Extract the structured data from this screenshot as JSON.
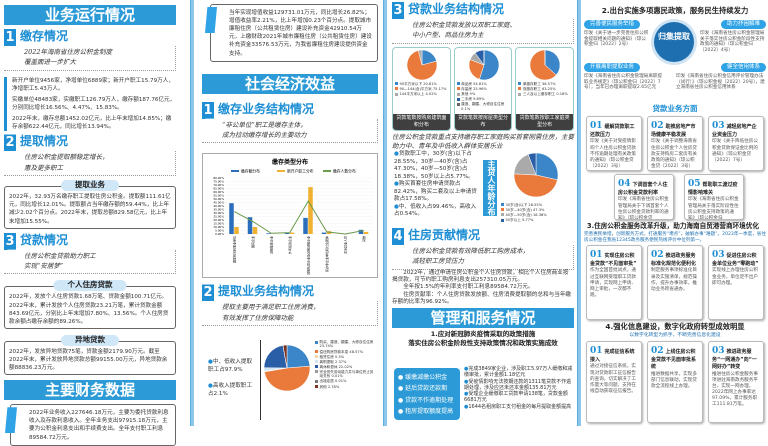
{
  "col1": {
    "band1": "业务运行情况",
    "s1": {
      "num": "1",
      "title": "缴存情况",
      "sub": [
        "2022年海南省住房公积金制度",
        "覆盖面进一步扩大"
      ]
    },
    "s1_text": [
      "新开户单位9456家，净增单位6889家；新开户职工15.79万人，净增职工5.43万人。",
      "实缴单位48483家，实缴职工126.79万人，缴存额187.76亿元，分别同比增长16.56%、4.47%、15.83%。",
      "2022年末，缴存总额1452.02亿元，比上年末增加14.85%；缴存余额622.44亿元，同比增长13.94%。"
    ],
    "s2": {
      "num": "2",
      "title": "提取情况",
      "sub": [
        "住房公积金提取额稳定增长，",
        "惠及更多职工"
      ]
    },
    "withdraw": {
      "tag": "提取业务",
      "text": "2022年，32.93万名缴存职工提取住房公积金。提取额111.61亿元，同比增长12.01%。提取额占当年缴存额的59.44%，比上年减少2.02个百分点。2022年末，提取总额829.58亿元，比上年末增加15.55%。"
    },
    "s3": {
      "num": "3",
      "title": "贷款情况",
      "sub": [
        "住房公积金贷款助力职工",
        "实现“安居梦”"
      ]
    },
    "personal": {
      "tag": "个人住房贷款",
      "text": "2022年，发放个人住房贷款1.68万笔、贷款金额100.71亿元。2022年末，累计发放个人住房贷款23.21万笔，累计贷款金额843.69亿元，分别比上年末增加7.80%、13.56%。个人住房贷款余额占缴存余额的89.26%。"
    },
    "offsite": {
      "tag": "异地贷款",
      "text": "2022年，发放异地贷款75笔，贷款金额2179.90万元。截至2022年末，累计发放异地贷款总额99155.00万元，异地贷款余额88836.23万元。"
    },
    "band2": "主要财务数据",
    "finance": "2022年业务收入227646.18万元，主要为委托贷款利息收入及存款利息收入。全年业务支出97915.18万元，主要为公积金利息支出和手续费支出。全年支付职工利息89584.72万元。"
  },
  "col2": {
    "finance2": "当年实现增值收益129731.01万元，同比增长26.82%；增值收益率2.21%，比上年增加0.23个百分点。提取城市廉租住房（公共租赁住房）建设补充资金42910.54万元，上缴财政2021年城市廉租住房（公共租赁住房）建设补充资金33576.53万元，为我省廉租住房建设提供资金支持。",
    "band": "社会经济效益",
    "s1": {
      "num": "1",
      "title": "缴存业务结构情况",
      "sub": [
        "“非公单位”职工是缴存主体，",
        "成为拉动缴存增长的主要动力"
      ]
    },
    "s2": {
      "num": "2",
      "title": "提取业务结构情况",
      "sub": [
        "提取主要用于满足职工住房消费，",
        "有效发挥了住房保障功能"
      ]
    },
    "bullets": [
      "中、低收入提取职工占97.9%",
      "高收入提取职工占2.1%"
    ]
  },
  "col3": {
    "s3": {
      "num": "3",
      "title": "贷款业务结构情况",
      "sub": [
        "住房公积金贷款发放以双职工家庭、",
        "中小户型、商品住房为主"
      ]
    },
    "captions": [
      "贷款笔数按购房建筑面积分布",
      "贷款笔数按房屋类型分布",
      "贷款笔数按职工家庭类型分布"
    ],
    "focus": "住房公积金贷款重点支持缴存职工家庭购买首套刚需住房，主要助力中、青年及中低收入群体安居乐业",
    "bullets": [
      "贷款职工中，30岁(含)以下占28.55%，30岁—40岁(含)占47.30%，40岁—50岁(含)占18.38%，50岁以上占5.77%。",
      "购买首套住房申请贷款占82.42%，购买二套及以上申请贷款占17.58%。",
      "中、低收入占99.46%，高收入占0.54%。"
    ],
    "age_label": "主贷人年龄分布",
    "s4": {
      "num": "4",
      "title": "住房贡献情况",
      "sub": [
        "住房公积金贷款有效降低职工购房成本，",
        "减轻职工房贷压力"
      ]
    },
    "contrib": [
      "2022年，通过申请住房公积金个人住房贷款，相比个人住房商业按揭贷款，可节约职工购房利息支出257310.05万元。",
      "全年按1.5%的年利率支付职工利息89584.72万元。",
      "住房贡献率：个人住房贷款发放额、住房消费提取额的总和与当年缴存额的比率为96.92%。"
    ],
    "band": "管理和服务情况",
    "h1": [
      "1.应对新冠肺炎疫情采取的政策措施",
      "落实住房公积金阶段性支持政策情况和政策实施成效"
    ],
    "policies": [
      "缓缴减缴公积金",
      "延后贷款还款期",
      "贷款不作逾期处理",
      "租房提取额度提高"
    ],
    "results": [
      "完成3849家企业，涉及职工5.97万人缓缴和减缴审批，累计金额1.18亿元",
      "受疫情影响无法按期还款的1311笔贷款不作逾期处理，涉及应还未还本金额135.81万元",
      "受理企业缓缴职工贷款申请138笔，贷款金额6681万元",
      "1644名租房职工支付租金的每月提取金额提高"
    ]
  },
  "col4": {
    "h2": "2.出台实施多项惠民政策，服务民生持续发力",
    "center": "归集提取",
    "pills": [
      "完善便民服务举措",
      "助力抒困解难",
      "开展离职提取业务",
      "健全信用体系"
    ],
    "pill_texts": [
      "印发《关于进一步完善住房公积金提取相关问题的通知》（琼公积金归〔2022〕2号）",
      "印发《海南省住房公积金管理局关于落实住房公积金阶段性支持政策的通知》（琼公积金归〔2022〕4号）",
      "印发《海南省住房公积金管理局离职提取业务规定》（琼公积金归〔2022〕7号），当年已办理离职提取2.65亿元",
      "印发《海南省住房公积金信用评价管理办法（试行）》（琼公积金规〔2022〕20号），建立海南省住房公积金信用体系"
    ],
    "loan_head": "贷款业务方面",
    "loan_cards": [
      {
        "n": "01",
        "t": "缓解贷款职工还款压力",
        "d": "印发《关于对受疫情影响个人住房公积金贷款不作逾期处理有关政策的通知》（琼公积金贷〔2022〕3号）"
      },
      {
        "n": "02",
        "t": "助推房地产市场健康平稳发展",
        "d": "印发《关于调整海南省住房公积金个人住房贷款支持购房二套房有关政策的通知》（琼公积金贷〔2022〕3号）"
      },
      {
        "n": "03",
        "t": "减轻房地产企业资金压力",
        "d": "印发《关于降低住房公积金贷款保证金比例的通知》（琼公积金贷〔2022〕7号）"
      },
      {
        "n": "04",
        "t": "下调首套个人住房公积金贷款利率",
        "d": "印发《海南省住房公积金管理局关于下调首套个人住房公积金贷款利率的通知》（琼公积金贷〔2022〕12号）"
      },
      {
        "n": "05",
        "t": "帮助职工渡过疫情影响难关",
        "d": "印发《海南省住房公积金管理局关于落实阶段性住房公积金支持政策的通知》（琼公积金归〔2022〕38号）"
      }
    ],
    "h3": "3.住房公积金服务改革升级，助力海南自贸港营商环境优化",
    "h3_text": "完善惠民举措，创新服务方式，打通服务“堵点”，破解办事“难题”。2023年一季度，省住房公积金在我省12345政务服务便民热线评价中位列第一。",
    "svc_cards": [
      {
        "n": "01",
        "t": "实现住房公积金贷款“不见面审批”",
        "d": "作为全国首批试点，通过互联网受理职工贷款申请，实现网上申请、网上审批，一次都不跑。"
      },
      {
        "n": "02",
        "t": "推进政务服务标准化规范化便利化",
        "d": "制定服务事项标准化目录及实施清单，规范操作，提升办事效率，推动业务跨省通办。"
      },
      {
        "n": "03",
        "t": "促进住房公积金单位业务“零跑动”",
        "d": "实现线上办理住房公积金业务，单位足不出户即可办理。"
      }
    ],
    "h4": "4.强化信息建设，数字化政府转型成效明显",
    "h4_sub": "以数字化转型为抓手，不断完善信息化建设",
    "info_cards": [
      {
        "n": "01",
        "t": "完成征信系统接入",
        "d": "通过对接征信系统，实现对贷款职工征信报告的查询，切实解决了工作量大等问题，支持在线自动获取征信报告。"
      },
      {
        "n": "02",
        "t": "上线住房公积金贷款不见面审批系统",
        "d": "推进数据共享，实现多部门信息联动，实现贷款全流程线上办理。"
      },
      {
        "n": "03",
        "t": "推进政务服务“一网通办”向“一网好办”转变",
        "d": "推进住房公积金服务事项进驻海南政务服务平台，实现一网办理，2022年网上办事率达97.09%，累计服务职工111.81万笔。"
      }
    ]
  },
  "chart_data": [
    {
      "type": "bar",
      "title": "缴存类型分布",
      "legend": [
        "缴存额分布",
        "新开户职工分布",
        "缴存人数分布"
      ],
      "categories": [
        "国家机关和事业单位",
        "国有企业",
        "城镇集体企业",
        "外商投资企业",
        "城镇私营企业及其他城镇企业",
        "民办非企业单位和社会团体",
        "灵活就业人员",
        "其他"
      ],
      "series": [
        {
          "name": "缴存额分布",
          "kind": "bar",
          "values": [
            44,
            24,
            1,
            2,
            23,
            2,
            0,
            6
          ]
        },
        {
          "name": "新开户职工分布",
          "kind": "bar",
          "values": [
            10,
            10,
            0,
            2,
            67,
            4,
            0,
            3
          ]
        },
        {
          "name": "缴存人数分布",
          "kind": "line",
          "values": [
            32,
            18,
            1,
            2,
            47,
            3,
            0,
            5
          ]
        }
      ],
      "yticks": [
        "0.00%",
        "5.00%",
        "10.00%",
        "15.00%",
        "20.00%",
        "25.00%",
        "30.00%",
        "35.00%",
        "40.00%",
        "45.00%",
        "50.00%",
        "55.00%",
        "60.00%",
        "65.00%",
        "70.00%",
        "75.00%",
        "80.00%"
      ],
      "ylim": [
        0,
        80
      ]
    },
    {
      "type": "pie",
      "name": "withdraw",
      "slices": [
        {
          "label": "购买、建造、翻建、大修自住住房",
          "value": 23.74,
          "color": "#3a86c8"
        },
        {
          "label": "偿还购房贷款本息",
          "value": 48.57,
          "color": "#e97a3b"
        },
        {
          "label": "租赁住房",
          "value": 0.5,
          "color": "#f3d9a8"
        },
        {
          "label": "离职提取",
          "value": 2.37,
          "color": "#cfe3f3"
        },
        {
          "label": "离休和退休",
          "value": 22.02,
          "color": "#2a5fa8"
        },
        {
          "label": "完全丧失劳动能力并与单位终止劳动关系",
          "value": 0.01,
          "color": "#999"
        },
        {
          "label": "出境定居",
          "value": 0.01,
          "color": "#777"
        },
        {
          "label": "其他",
          "value": 2.78,
          "color": "#7a3322"
        }
      ]
    },
    {
      "type": "pie",
      "name": "area",
      "slices": [
        {
          "label": "90平方米以下",
          "value": 20.81,
          "color": "#3a86c8"
        },
        {
          "label": "90—144(含)平方米",
          "value": 75.17,
          "color": "#e97a3b"
        },
        {
          "label": "144平方米以上",
          "value": 4.02,
          "color": "#aaa"
        }
      ]
    },
    {
      "type": "pie",
      "name": "house",
      "slices": [
        {
          "label": "商品房",
          "value": 54.81,
          "color": "#3a86c8"
        },
        {
          "label": "存量房",
          "value": 25.96,
          "color": "#e97a3b"
        },
        {
          "label": "其他",
          "value": 9.0,
          "color": "#aaa"
        },
        {
          "label": "二手房",
          "value": 9.89,
          "color": "#2a5fa8"
        },
        {
          "label": "建造、翻建、大修自住住房",
          "value": 0.1,
          "color": "#666"
        }
      ]
    },
    {
      "type": "pie",
      "name": "family",
      "slices": [
        {
          "label": "单缴存职工",
          "value": 36.57,
          "color": "#3a86c8"
        },
        {
          "label": "双缴存职工",
          "value": 63.25,
          "color": "#e97a3b"
        },
        {
          "label": "三人及以上缴存职工",
          "value": 0.18,
          "color": "#aaa"
        }
      ]
    },
    {
      "type": "pie",
      "name": "age",
      "slices": [
        {
          "label": "30岁(含)以下",
          "value": 28.55,
          "color": "#3a86c8"
        },
        {
          "label": "30岁—40岁(含)",
          "value": 47.3,
          "color": "#e97a3b"
        },
        {
          "label": "40岁—50岁(含)",
          "value": 18.38,
          "color": "#aaa"
        },
        {
          "label": "50岁以上",
          "value": 5.77,
          "color": "#2a5fa8"
        }
      ]
    }
  ]
}
